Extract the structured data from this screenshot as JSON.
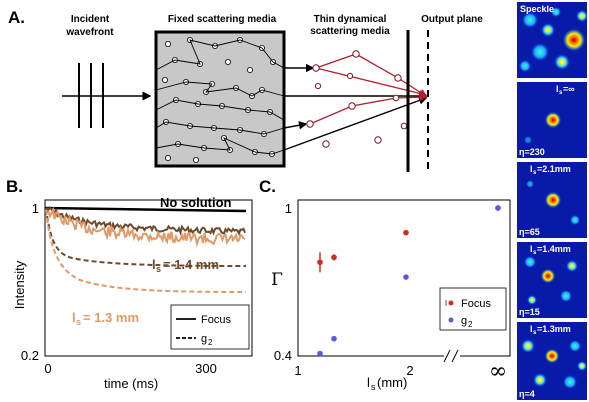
{
  "panel_a": {
    "letter": "A.",
    "labels": {
      "incident_line1": "Incident",
      "incident_line2": "wavefront",
      "fixed_media": "Fixed scattering media",
      "thin_line1": "Thin dynamical",
      "thin_line2": "scattering media",
      "output_plane": "Output plane"
    }
  },
  "panel_b": {
    "letter": "B.",
    "ylabel": "Intensity",
    "xlabel": "time (ms)",
    "yticks": [
      "1",
      "0.2"
    ],
    "xticks": [
      "0",
      "300"
    ],
    "no_solution": "No solution",
    "ls14": "= 1.4 mm",
    "ls13": "= 1.3 mm",
    "ls_sym": "l",
    "ls_sub": "s",
    "legend": {
      "focus": "Focus",
      "g2": "g",
      "g2_sub": "2"
    },
    "colors": {
      "ls14": "#6b4a2e",
      "ls13": "#e09a68",
      "black": "#000000"
    }
  },
  "panel_c": {
    "letter": "C.",
    "ylabel": "Γ",
    "xlabel_sym": "l",
    "xlabel_sub": "s",
    "xlabel_unit": " (mm)",
    "yticks": [
      "1",
      "0.4"
    ],
    "xticks": [
      "1",
      "2",
      "∞"
    ],
    "legend": {
      "focus": "Focus",
      "g2": "g",
      "g2_sub": "2"
    },
    "colors": {
      "focus": "#d62a20",
      "g2": "#5a5ae0"
    }
  },
  "panel_d": {
    "letter": "D.",
    "tiles": [
      {
        "top": "Speckle",
        "eta": ""
      },
      {
        "top": "l",
        "top_sub": "s",
        "top_rest": "=∞",
        "eta": "η=230"
      },
      {
        "top": "l",
        "top_sub": "s",
        "top_rest": "=2.1mm",
        "eta": "η=65"
      },
      {
        "top": "l",
        "top_sub": "s",
        "top_rest": "=1.4mm",
        "eta": "η=15"
      },
      {
        "top": "l",
        "top_sub": "s",
        "top_rest": "=1.3mm",
        "eta": "η=4"
      }
    ]
  },
  "chart_data": [
    {
      "type": "line",
      "xlabel": "time (ms)",
      "ylabel": "Intensity",
      "xlim": [
        0,
        370
      ],
      "ylim": [
        0.2,
        1
      ],
      "y_scale": "log",
      "series": [
        {
          "name": "Focus",
          "values": [
            1.0,
            1.0,
            1.0,
            1.0
          ]
        },
        {
          "name": "Focus",
          "values": [
            1.0,
            0.86,
            0.79,
            0.74
          ]
        },
        {
          "name": "Focus",
          "values": [
            1.0,
            0.78,
            0.7,
            0.66
          ]
        },
        {
          "name": "g2",
          "values": [
            1.0,
            0.48,
            0.45,
            0.44
          ]
        },
        {
          "name": "g2",
          "values": [
            1.0,
            0.4,
            0.37,
            0.36
          ]
        }
      ],
      "x": [
        0,
        100,
        200,
        370
      ]
    },
    {
      "type": "scatter",
      "xlabel": "ls (mm)",
      "ylabel": "Γ",
      "ylim": [
        0.4,
        1
      ],
      "series": [
        {
          "name": "Focus",
          "x": [
            1.3,
            1.4,
            2.1,
            "∞"
          ],
          "values": [
            0.78,
            0.8,
            0.9,
            1.0
          ]
        },
        {
          "name": "g2",
          "x": [
            1.3,
            1.4,
            2.1,
            "∞"
          ],
          "values": [
            0.41,
            0.47,
            0.72,
            1.0
          ]
        }
      ],
      "legend": "bottom-right"
    }
  ]
}
